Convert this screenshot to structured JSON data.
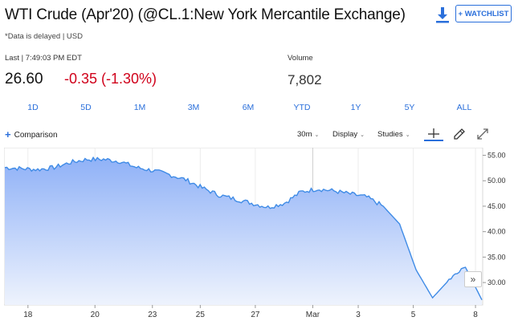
{
  "header": {
    "title": "WTI Crude (Apr'20) (@CL.1:New York Mercantile Exchange)",
    "delayed_note": "*Data is delayed | USD",
    "watchlist_label": "+ WATCHLIST",
    "download_icon": "download-icon"
  },
  "quote": {
    "last_label": "Last | 7:49:03 PM EDT",
    "price": "26.60",
    "change": "-0.35 (-1.30%)",
    "volume_label": "Volume",
    "volume": "7,802",
    "change_color": "#d0021b"
  },
  "ranges": [
    "1D",
    "5D",
    "1M",
    "3M",
    "6M",
    "YTD",
    "1Y",
    "5Y",
    "ALL"
  ],
  "toolbar": {
    "comparison_label": "Comparison",
    "interval": "30m",
    "display_label": "Display",
    "studies_label": "Studies",
    "tools": [
      "crosshair-icon",
      "draw-pencil-icon",
      "fullscreen-icon"
    ]
  },
  "expand_label": "»",
  "colors": {
    "accent": "#2a6fdb",
    "line": "#3f8be6",
    "fill_top": "#8fb1f7",
    "fill_bottom": "#eef3fd"
  },
  "chart_data": {
    "type": "area",
    "series": [
      {
        "values": [
          52.6,
          52.4,
          52.2,
          52.6,
          53.6,
          54.2,
          54.2,
          53.8,
          52.6,
          52.0,
          51.2,
          50.2,
          48.6,
          47.2,
          46.4,
          45.6,
          44.8,
          45.6,
          47.8,
          48.4,
          48.0,
          47.4,
          46.8,
          45.0,
          41.5,
          32.5,
          27.0,
          30.5,
          33.0,
          26.6
        ]
      }
    ],
    "x_tick_labels": [
      "18",
      "20",
      "23",
      "25",
      "27",
      "Mar",
      "3",
      "5",
      "8"
    ],
    "y_ticks": [
      30.0,
      35.0,
      40.0,
      45.0,
      50.0,
      55.0
    ],
    "y_tick_labels": [
      "30.00",
      "35.00",
      "40.00",
      "45.00",
      "50.00",
      "55.00"
    ],
    "ylim": [
      25.6,
      56.5
    ],
    "grid": "vertical",
    "axis_position": "right"
  }
}
